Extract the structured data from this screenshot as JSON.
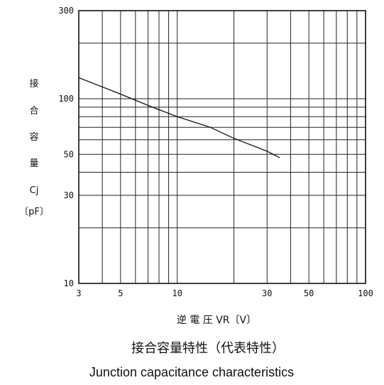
{
  "chart_data": {
    "type": "line",
    "title": "接合容量特性（代表特性）",
    "subtitle": "Junction capacitance characteristics",
    "xlabel": "逆 電 圧 VR〔V〕",
    "ylabel_lines": [
      "接",
      "合",
      "容",
      "量",
      "Cj",
      "〔pF〕"
    ],
    "x_scale": "log",
    "y_scale": "log",
    "xlim": [
      3,
      100
    ],
    "ylim": [
      10,
      300
    ],
    "x_ticks": [
      3,
      5,
      10,
      30,
      50,
      100
    ],
    "x_tick_labels": [
      "3",
      "5",
      "10",
      "30",
      "50",
      "100"
    ],
    "y_ticks": [
      10,
      30,
      50,
      100,
      300
    ],
    "y_tick_labels": [
      "10",
      "30",
      "50",
      "100",
      "300"
    ],
    "grid": true,
    "series": [
      {
        "x": [
          3,
          5,
          7,
          10,
          15,
          20,
          30,
          35
        ],
        "y": [
          130,
          106,
          92,
          80,
          70,
          61,
          52,
          48
        ]
      }
    ]
  },
  "colors": {
    "line": "#111111",
    "grid": "#222222",
    "background": "#ffffff"
  }
}
